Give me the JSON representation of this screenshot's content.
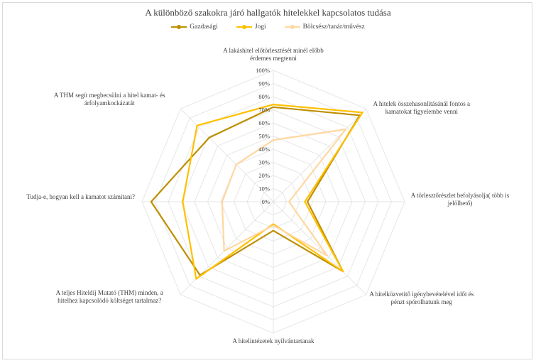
{
  "chart_data": {
    "type": "radar",
    "title": "A különböző szakokra járó hallgatók hitelekkel kapcsolatos tudása",
    "categories": [
      [
        "A lakáshitel előtörlesztését minél előbb",
        "érdemes megtenni"
      ],
      [
        "A hitelek összehasonlításánál fontos a",
        "kamatokat figyelembe venni"
      ],
      [
        "A törlesztőrészlet befolyásolja( több is",
        "jelölhető)"
      ],
      [
        "A hitelközvetítő igénybevételével időt és",
        "pénzt spórolhatunk meg"
      ],
      [
        "A hitelintézetek nyilvántartanak"
      ],
      [
        "A teljes Hiteldíj Mutató (THM) minden, a",
        "hitelhez kapcsolódó költséget tartalmaz?"
      ],
      [
        "Tudja-e, hogyan kell a kamatot számítani?"
      ],
      [
        "A THM segít megbecsülni a hitel kamat- és",
        "árfolyamkockázatát"
      ]
    ],
    "ticks": [
      "0%",
      "10%",
      "20%",
      "30%",
      "40%",
      "50%",
      "60%",
      "70%",
      "80%",
      "90%",
      "100%"
    ],
    "rmax": 100,
    "legend_position": "top",
    "series": [
      {
        "name": "Gazdasági",
        "color": "#bf8f00",
        "values": [
          72,
          93,
          26,
          75,
          22,
          79,
          93,
          69
        ]
      },
      {
        "name": "Jogi",
        "color": "#ffc000",
        "values": [
          74,
          96,
          24,
          75,
          17,
          83,
          69,
          82
        ]
      },
      {
        "name": "Bölcsész/tanár/művész",
        "color": "#ffd7a0",
        "values": [
          47,
          78,
          12,
          58,
          18,
          53,
          39,
          40
        ]
      }
    ]
  }
}
